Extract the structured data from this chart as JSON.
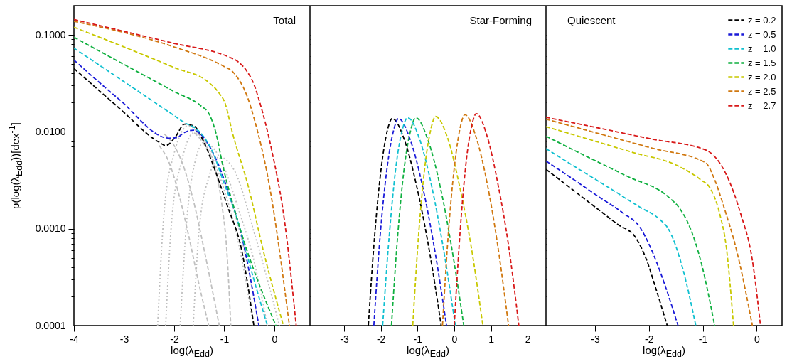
{
  "chart_data": [
    {
      "type": "line",
      "title": "Total",
      "xlabel": "log(λ$_{Edd}$)",
      "ylabel": "p(log(λ$_{Edd}$))[dex$^{-1}$]",
      "log": true,
      "xlim": [
        -4,
        0.71
      ],
      "xticks": [
        -4,
        -3,
        -2,
        -1,
        0
      ],
      "ylim": [
        0.0001,
        0.2
      ],
      "yticks": [
        {
          "value": 0.0001,
          "label": "0.0001"
        },
        {
          "value": 0.0002,
          "label": null
        },
        {
          "value": 0.0003,
          "label": null
        },
        {
          "value": 0.0004,
          "label": null
        },
        {
          "value": 0.0005,
          "label": null
        },
        {
          "value": 0.0006,
          "label": null
        },
        {
          "value": 0.0007,
          "label": null
        },
        {
          "value": 0.0008,
          "label": null
        },
        {
          "value": 0.0009,
          "label": null
        },
        {
          "value": 0.001,
          "label": "0.0010"
        },
        {
          "value": 0.002,
          "label": null
        },
        {
          "value": 0.003,
          "label": null
        },
        {
          "value": 0.004,
          "label": null
        },
        {
          "value": 0.005,
          "label": null
        },
        {
          "value": 0.006,
          "label": null
        },
        {
          "value": 0.007,
          "label": null
        },
        {
          "value": 0.008,
          "label": null
        },
        {
          "value": 0.009,
          "label": null
        },
        {
          "value": 0.01,
          "label": "0.0100"
        },
        {
          "value": 0.02,
          "label": null
        },
        {
          "value": 0.03,
          "label": null
        },
        {
          "value": 0.04,
          "label": null
        },
        {
          "value": 0.05,
          "label": null
        },
        {
          "value": 0.06,
          "label": null
        },
        {
          "value": 0.07,
          "label": null
        },
        {
          "value": 0.08,
          "label": null
        },
        {
          "value": 0.09,
          "label": null
        },
        {
          "value": 0.1,
          "label": "0.1000"
        },
        {
          "value": 0.2,
          "label": null
        }
      ],
      "series": [
        {
          "color": "#c0c0c0",
          "line_style": "dotted",
          "x": [
            -2.33,
            -2.2,
            -2.0,
            -1.72,
            -1.4,
            -1.0,
            -0.7,
            -0.42
          ],
          "values": [
            0.0001,
            0.0015,
            0.006,
            0.0115,
            0.0078,
            0.0025,
            0.00065,
            0.0001
          ]
        },
        {
          "color": "#c0c0c0",
          "line_style": "dotted",
          "x": [
            -2.17,
            -2.05,
            -1.85,
            -1.6,
            -1.3,
            -0.9,
            -0.6,
            -0.31
          ],
          "values": [
            0.0001,
            0.0012,
            0.005,
            0.0098,
            0.0068,
            0.0022,
            0.0006,
            0.0001
          ]
        },
        {
          "color": "#c0c0c0",
          "line_style": "dotted",
          "x": [
            -1.88,
            -1.75,
            -1.6,
            -1.4,
            -1.1,
            -0.7,
            -0.4,
            -0.14
          ],
          "values": [
            0.0001,
            0.0012,
            0.0045,
            0.0078,
            0.0055,
            0.0015,
            0.00045,
            0.0001
          ]
        },
        {
          "color": "#c0c0c0",
          "line_style": "dotted",
          "x": [
            -1.62,
            -1.5,
            -1.3,
            -1.1,
            -0.8,
            -0.4,
            -0.1,
            0.1
          ],
          "values": [
            0.0001,
            0.001,
            0.0035,
            0.0055,
            0.004,
            0.0009,
            0.00025,
            0.0001
          ]
        },
        {
          "color": "#c0c0c0",
          "line_style": "dashed",
          "x": [
            -2.3,
            -2.1,
            -1.9,
            -1.7,
            -1.5,
            -1.31
          ],
          "values": [
            0.0072,
            0.0048,
            0.0022,
            0.0008,
            0.00026,
            0.0001
          ]
        },
        {
          "color": "#c0c0c0",
          "line_style": "dashed",
          "x": [
            -2.2,
            -2.0,
            -1.8,
            -1.6,
            -1.4,
            -1.1
          ],
          "values": [
            0.0095,
            0.0072,
            0.0042,
            0.0018,
            0.0006,
            0.0001
          ]
        },
        {
          "color": "#c0c0c0",
          "line_style": "dashed",
          "x": [
            -1.6,
            -1.4,
            -1.2,
            -1.05,
            -0.95,
            -0.87
          ],
          "values": [
            0.0098,
            0.0074,
            0.0045,
            0.0018,
            0.0006,
            0.0001
          ]
        },
        {
          "color": "#000000",
          "line_style": "dashed",
          "x": [
            -4,
            -3.11,
            -2.3,
            -2.17,
            -1.98,
            -1.79,
            -1.6,
            -1.41,
            -1.22,
            -0.94,
            -0.65,
            -0.41
          ],
          "values": [
            0.045,
            0.0178,
            0.0078,
            0.0072,
            0.0088,
            0.012,
            0.0114,
            0.0079,
            0.0045,
            0.00173,
            0.00059,
            0.0001
          ]
        },
        {
          "color": "#1a1ad8",
          "line_style": "dashed",
          "x": [
            -4,
            -3.11,
            -2.1,
            -1.95,
            -1.8,
            -1.62,
            -1.46,
            -1.22,
            -0.94,
            -0.65,
            -0.31
          ],
          "values": [
            0.055,
            0.0219,
            0.0086,
            0.0087,
            0.0098,
            0.0104,
            0.0093,
            0.006,
            0.0026,
            0.00083,
            0.0001
          ]
        },
        {
          "color": "#10c0d0",
          "line_style": "dashed",
          "x": [
            -4,
            -2.0,
            -1.79,
            -1.6,
            -1.41,
            -1.22,
            -1.03,
            -0.75,
            -0.46,
            -0.14
          ],
          "values": [
            0.073,
            0.0147,
            0.0124,
            0.0111,
            0.0089,
            0.006,
            0.0032,
            0.0013,
            0.00037,
            0.0001
          ]
        },
        {
          "color": "#10b040",
          "line_style": "dashed",
          "x": [
            -4,
            -2.0,
            -1.46,
            -1.31,
            -1.17,
            -1.03,
            -0.75,
            0.03
          ],
          "values": [
            0.0945,
            0.026,
            0.0184,
            0.0155,
            0.0099,
            0.0045,
            0.0013,
            0.0001
          ]
        },
        {
          "color": "#c8c800",
          "line_style": "dashed",
          "x": [
            -4,
            -2.0,
            -1.31,
            -1.125,
            -0.98,
            -0.84,
            -0.51,
            -0.23,
            0.18
          ],
          "values": [
            0.12,
            0.046,
            0.0323,
            0.0259,
            0.0194,
            0.0099,
            0.0026,
            0.00062,
            0.0001
          ]
        },
        {
          "color": "#d07810",
          "line_style": "dashed",
          "x": [
            -4,
            -2.0,
            -1.03,
            -0.84,
            -0.7,
            -0.56,
            -0.37,
            -0.13,
            0.3
          ],
          "values": [
            0.138,
            0.075,
            0.048,
            0.042,
            0.034,
            0.0245,
            0.0118,
            0.0034,
            0.0001
          ]
        },
        {
          "color": "#d81818",
          "line_style": "dashed",
          "x": [
            -4,
            -2.0,
            -0.94,
            -0.75,
            -0.56,
            -0.42,
            -0.27,
            -0.04,
            0.2,
            0.435
          ],
          "values": [
            0.144,
            0.0817,
            0.06,
            0.054,
            0.043,
            0.032,
            0.0184,
            0.006,
            0.00123,
            0.0001
          ]
        }
      ]
    },
    {
      "type": "line",
      "title": "Star-Forming",
      "xlabel": "log(λ$_{Edd}$)",
      "log": true,
      "tick_labels": "x",
      "line_style": "dashed",
      "xlim": [
        -3.93,
        2.5
      ],
      "xticks": [
        -3,
        -2,
        -1,
        0,
        1,
        2
      ],
      "ylim": [
        0.0001,
        0.2
      ],
      "yticks": [
        {
          "value": 0.0001,
          "label": null
        },
        {
          "value": 0.0002,
          "label": null
        },
        {
          "value": 0.0003,
          "label": null
        },
        {
          "value": 0.0004,
          "label": null
        },
        {
          "value": 0.0005,
          "label": null
        },
        {
          "value": 0.0006,
          "label": null
        },
        {
          "value": 0.0007,
          "label": null
        },
        {
          "value": 0.0008,
          "label": null
        },
        {
          "value": 0.0009,
          "label": null
        },
        {
          "value": 0.001,
          "label": null
        },
        {
          "value": 0.002,
          "label": null
        },
        {
          "value": 0.003,
          "label": null
        },
        {
          "value": 0.004,
          "label": null
        },
        {
          "value": 0.005,
          "label": null
        },
        {
          "value": 0.006,
          "label": null
        },
        {
          "value": 0.007,
          "label": null
        },
        {
          "value": 0.008,
          "label": null
        },
        {
          "value": 0.009,
          "label": null
        },
        {
          "value": 0.01,
          "label": null
        },
        {
          "value": 0.02,
          "label": null
        },
        {
          "value": 0.03,
          "label": null
        },
        {
          "value": 0.04,
          "label": null
        },
        {
          "value": 0.05,
          "label": null
        },
        {
          "value": 0.06,
          "label": null
        },
        {
          "value": 0.07,
          "label": null
        },
        {
          "value": 0.08,
          "label": null
        },
        {
          "value": 0.09,
          "label": null
        },
        {
          "value": 0.1,
          "label": null
        },
        {
          "value": 0.2,
          "label": null
        }
      ],
      "series": [
        {
          "color": "#000000",
          "x": [
            -2.34,
            -2.17,
            -1.98,
            -1.82,
            -1.69,
            -1.34,
            -1.01,
            -0.69,
            -0.355
          ],
          "values": [
            0.0001,
            0.00083,
            0.0045,
            0.0104,
            0.0137,
            0.0079,
            0.0026,
            0.00063,
            0.0001
          ]
        },
        {
          "color": "#1a1ad8",
          "x": [
            -2.19,
            -2.02,
            -1.82,
            -1.65,
            -1.52,
            -1.18,
            -0.85,
            -0.54,
            -0.21
          ],
          "values": [
            0.0001,
            0.00083,
            0.0045,
            0.0104,
            0.0137,
            0.0079,
            0.0026,
            0.00063,
            0.0001
          ]
        },
        {
          "color": "#10c0d0",
          "x": [
            -1.95,
            -1.77,
            -1.58,
            -1.41,
            -1.27,
            -0.93,
            -0.61,
            -0.3,
            0.03
          ],
          "values": [
            0.0001,
            0.00085,
            0.0046,
            0.0106,
            0.014,
            0.0081,
            0.0027,
            0.00064,
            0.0001
          ]
        },
        {
          "color": "#10b040",
          "x": [
            -1.71,
            -1.54,
            -1.35,
            -1.18,
            -1.05,
            -0.71,
            -0.38,
            -0.07,
            0.26
          ],
          "values": [
            0.0001,
            0.00085,
            0.0046,
            0.0106,
            0.014,
            0.0081,
            0.0027,
            0.00064,
            0.0001
          ]
        },
        {
          "color": "#c8c800",
          "x": [
            -1.13,
            -0.97,
            -0.79,
            -0.63,
            -0.51,
            -0.17,
            0.15,
            0.46,
            0.78
          ],
          "values": [
            0.0001,
            0.00087,
            0.0047,
            0.0109,
            0.0144,
            0.0084,
            0.0027,
            0.00066,
            0.0001
          ]
        },
        {
          "color": "#d07810",
          "x": [
            -0.32,
            -0.16,
            0.02,
            0.17,
            0.29,
            0.6,
            0.9,
            1.18,
            1.48
          ],
          "values": [
            0.0001,
            0.0009,
            0.0049,
            0.0114,
            0.015,
            0.0087,
            0.0029,
            0.00069,
            0.0001
          ]
        },
        {
          "color": "#d81818",
          "x": [
            0,
            0.16,
            0.33,
            0.48,
            0.6,
            0.9,
            1.19,
            1.47,
            1.76
          ],
          "values": [
            0.0001,
            0.00093,
            0.0051,
            0.0117,
            0.0154,
            0.0089,
            0.0029,
            0.00071,
            0.0001
          ]
        }
      ]
    },
    {
      "type": "line",
      "title": "Quiescent",
      "xlabel": "log(λ$_{Edd}$)",
      "log": true,
      "tick_labels": "x",
      "legend": "top right",
      "line_style": "dashed",
      "xlim": [
        -3.91,
        0.47
      ],
      "xticks": [
        -3,
        -2,
        -1,
        0
      ],
      "ylim": [
        0.0001,
        0.2
      ],
      "yticks": [
        {
          "value": 0.0001,
          "label": null
        },
        {
          "value": 0.0002,
          "label": null
        },
        {
          "value": 0.0003,
          "label": null
        },
        {
          "value": 0.0004,
          "label": null
        },
        {
          "value": 0.0005,
          "label": null
        },
        {
          "value": 0.0006,
          "label": null
        },
        {
          "value": 0.0007,
          "label": null
        },
        {
          "value": 0.0008,
          "label": null
        },
        {
          "value": 0.0009,
          "label": null
        },
        {
          "value": 0.001,
          "label": null
        },
        {
          "value": 0.002,
          "label": null
        },
        {
          "value": 0.003,
          "label": null
        },
        {
          "value": 0.004,
          "label": null
        },
        {
          "value": 0.005,
          "label": null
        },
        {
          "value": 0.006,
          "label": null
        },
        {
          "value": 0.007,
          "label": null
        },
        {
          "value": 0.008,
          "label": null
        },
        {
          "value": 0.009,
          "label": null
        },
        {
          "value": 0.01,
          "label": null
        },
        {
          "value": 0.02,
          "label": null
        },
        {
          "value": 0.03,
          "label": null
        },
        {
          "value": 0.04,
          "label": null
        },
        {
          "value": 0.05,
          "label": null
        },
        {
          "value": 0.06,
          "label": null
        },
        {
          "value": 0.07,
          "label": null
        },
        {
          "value": 0.08,
          "label": null
        },
        {
          "value": 0.09,
          "label": null
        },
        {
          "value": 0.1,
          "label": null
        },
        {
          "value": 0.2,
          "label": null
        }
      ],
      "series": [
        {
          "name": "z = 0.2",
          "color": "#000000",
          "x": [
            -3.91,
            -3.46,
            -3.02,
            -2.57,
            -2.26,
            -2.04,
            -1.87,
            -1.66
          ],
          "values": [
            0.0041,
            0.00264,
            0.00171,
            0.0011,
            0.00083,
            0.00047,
            0.00024,
            0.0001
          ]
        },
        {
          "name": "z = 0.5",
          "color": "#1a1ad8",
          "x": [
            -3.91,
            -3.43,
            -2.96,
            -2.48,
            -2.17,
            -1.96,
            -1.74,
            -1.46
          ],
          "values": [
            0.005,
            0.00331,
            0.00219,
            0.00145,
            0.00104,
            0.00062,
            0.0003,
            0.0001
          ]
        },
        {
          "name": "z = 1.0",
          "color": "#10c0d0",
          "x": [
            -3.91,
            -3.32,
            -2.72,
            -2.13,
            -1.83,
            -1.61,
            -1.39,
            -1.13
          ],
          "values": [
            0.0067,
            0.00418,
            0.0026,
            0.00162,
            0.00129,
            0.00093,
            0.00042,
            0.0001
          ]
        },
        {
          "name": "z = 1.5",
          "color": "#10b040",
          "x": [
            -3.91,
            -3.16,
            -2.4,
            -1.65,
            -1.43,
            -1.26,
            -1.04,
            -0.78
          ],
          "values": [
            0.009,
            0.00558,
            0.00347,
            0.00215,
            0.00162,
            0.0011,
            0.00047,
            0.0001
          ]
        },
        {
          "name": "z = 2.0",
          "color": "#c8c800",
          "x": [
            -3.91,
            -3.1,
            -2.29,
            -1.48,
            -1.04,
            -0.86,
            -0.69,
            -0.56,
            -0.43
          ],
          "values": [
            0.0113,
            0.00832,
            0.0061,
            0.0045,
            0.0032,
            0.0026,
            0.00145,
            0.00062,
            0.0001
          ]
        },
        {
          "name": "z = 2.5",
          "color": "#d07810",
          "x": [
            -3.91,
            -2.92,
            -1.94,
            -0.95,
            -0.78,
            -0.6,
            -0.38,
            -0.08
          ],
          "values": [
            0.0135,
            0.00955,
            0.00678,
            0.0048,
            0.0032,
            0.00162,
            0.00062,
            0.0001
          ]
        },
        {
          "name": "z = 2.7",
          "color": "#d81818",
          "x": [
            -3.91,
            -2.92,
            -1.94,
            -0.95,
            -0.69,
            -0.52,
            -0.3,
            -0.08,
            0.07
          ],
          "values": [
            0.0141,
            0.0109,
            0.0084,
            0.0065,
            0.0048,
            0.0032,
            0.00144,
            0.00047,
            0.0001
          ]
        }
      ]
    }
  ]
}
